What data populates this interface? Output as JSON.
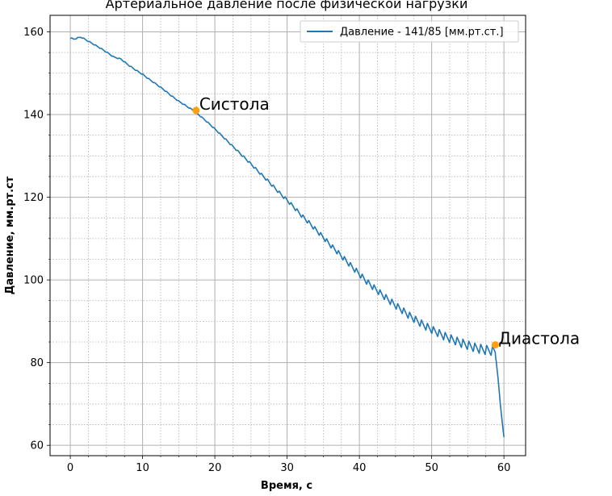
{
  "chart_data": {
    "type": "line",
    "title": "Артериальное давление после физической нагрузки",
    "xlabel": "Время, с",
    "ylabel": "Давление, мм.рт.ст",
    "xlim": [
      -2.8,
      63
    ],
    "ylim": [
      57.5,
      164
    ],
    "x_ticks": [
      0,
      10,
      20,
      30,
      40,
      50,
      60
    ],
    "y_ticks": [
      60,
      80,
      100,
      120,
      140,
      160
    ],
    "grid": {
      "major": true,
      "minor": true
    },
    "legend_position": "top-right",
    "series": [
      {
        "name": "Давление - 141/85 [мм.рт.ст.]",
        "color": "#1f77b4",
        "x": [
          0,
          0.5,
          1,
          1.5,
          2,
          3,
          4,
          5,
          6,
          7,
          8,
          9,
          10,
          11,
          12,
          13,
          14,
          15,
          16,
          17,
          18,
          19,
          20,
          21,
          22,
          23,
          24,
          25,
          26,
          27,
          28,
          29,
          30,
          31,
          32,
          33,
          34,
          35,
          36,
          37,
          38,
          39,
          40,
          41,
          42,
          43,
          44,
          45,
          46,
          47,
          48,
          49,
          50,
          51,
          52,
          53,
          54,
          55,
          56,
          57,
          58,
          58.8,
          59.2,
          59.5,
          59.8,
          60
        ],
        "y": [
          158.5,
          158.2,
          158.5,
          158.7,
          158.2,
          157.2,
          156.2,
          155.1,
          153.9,
          153.4,
          152.0,
          150.8,
          149.7,
          148.4,
          147.2,
          145.9,
          144.5,
          143.2,
          142.1,
          141.0,
          139.6,
          138.1,
          136.5,
          134.8,
          133.1,
          131.4,
          129.7,
          128.0,
          126.2,
          124.5,
          122.7,
          120.9,
          119.2,
          117.4,
          115.5,
          113.8,
          112.0,
          110.2,
          108.3,
          106.6,
          104.8,
          103.0,
          101.3,
          99.5,
          98.0,
          96.5,
          95.1,
          93.7,
          92.4,
          91.1,
          89.9,
          88.8,
          87.8,
          86.9,
          86.0,
          85.3,
          84.6,
          84.0,
          83.4,
          83.0,
          82.7,
          82.5,
          76.0,
          70.0,
          65.0,
          62.0
        ]
      }
    ],
    "annotations": [
      {
        "label": "Систола",
        "x": 17.4,
        "y": 141.0,
        "color": "#ff9f0e"
      },
      {
        "label": "Диастола",
        "x": 58.8,
        "y": 84.3,
        "color": "#ff9f0e"
      }
    ]
  }
}
